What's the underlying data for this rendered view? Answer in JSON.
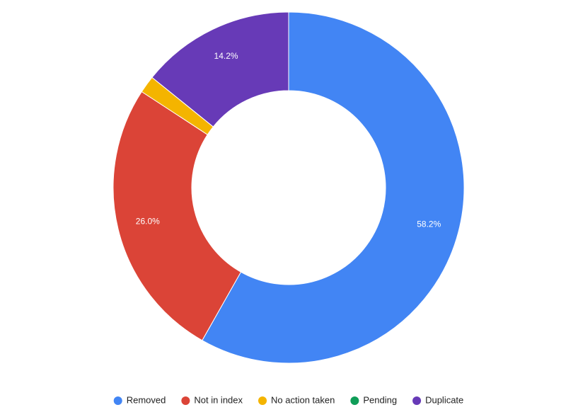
{
  "chart_data": {
    "type": "donut",
    "categories": [
      "Removed",
      "Not in index",
      "No action taken",
      "Pending",
      "Duplicate"
    ],
    "values": [
      58.2,
      26.0,
      1.6,
      0,
      14.2
    ],
    "value_labels": [
      "58.2%",
      "26.0%",
      null,
      null,
      "14.2%"
    ],
    "colors": [
      "#4285f4",
      "#db4437",
      "#f4b400",
      "#0f9d58",
      "#673ab7"
    ],
    "legend": "bottom"
  }
}
